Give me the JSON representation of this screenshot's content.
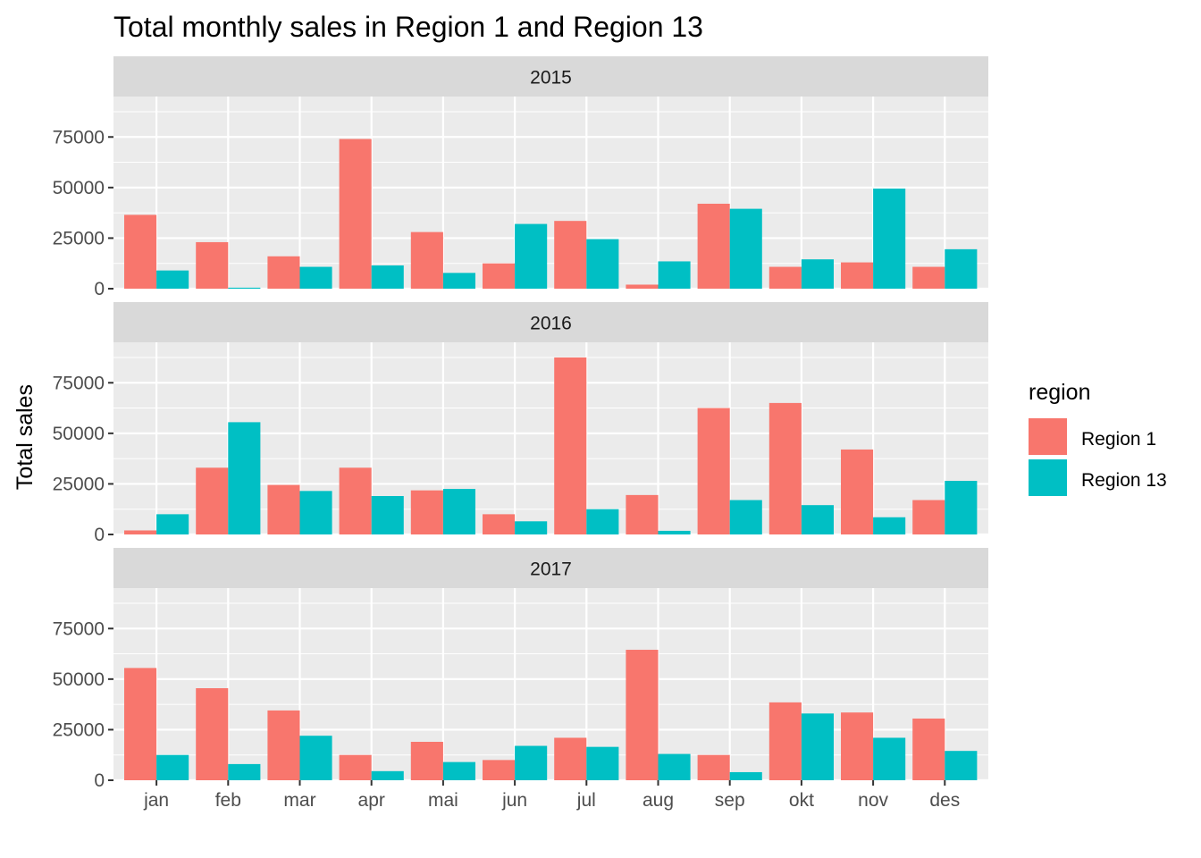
{
  "chart_data": {
    "type": "bar",
    "title": "Total monthly sales in Region 1 and Region 13",
    "xlabel": "",
    "ylabel": "Total sales",
    "ylim": [
      0,
      95000
    ],
    "yticks": [
      0,
      25000,
      50000,
      75000
    ],
    "grid": true,
    "legend": {
      "title": "region",
      "position": "right"
    },
    "categories": [
      "jan",
      "feb",
      "mar",
      "apr",
      "mai",
      "jun",
      "jul",
      "aug",
      "sep",
      "okt",
      "nov",
      "des"
    ],
    "colors": {
      "Region 1": "#F8766D",
      "Region 13": "#00BFC4"
    },
    "facets": [
      {
        "label": "2015",
        "series": [
          {
            "name": "Region 1",
            "values": [
              36500,
              23000,
              16000,
              74000,
              28000,
              12500,
              33500,
              2000,
              42000,
              10800,
              13000,
              10800
            ]
          },
          {
            "name": "Region 13",
            "values": [
              9000,
              500,
              10800,
              11500,
              7800,
              32000,
              24500,
              13500,
              39500,
              14500,
              49500,
              19500
            ]
          }
        ]
      },
      {
        "label": "2016",
        "series": [
          {
            "name": "Region 1",
            "values": [
              2000,
              33000,
              24500,
              33000,
              21800,
              10000,
              87500,
              19500,
              62500,
              65000,
              42000,
              17000
            ]
          },
          {
            "name": "Region 13",
            "values": [
              10000,
              55500,
              21500,
              19000,
              22500,
              6500,
              12500,
              1800,
              17000,
              14500,
              8500,
              26500
            ]
          }
        ]
      },
      {
        "label": "2017",
        "series": [
          {
            "name": "Region 1",
            "values": [
              55500,
              45500,
              34500,
              12500,
              19000,
              10000,
              21000,
              64500,
              12500,
              38500,
              33500,
              30500
            ]
          },
          {
            "name": "Region 13",
            "values": [
              12500,
              8000,
              22000,
              4500,
              9000,
              17000,
              16500,
              13000,
              4000,
              33000,
              21000,
              14500
            ]
          }
        ]
      }
    ]
  }
}
